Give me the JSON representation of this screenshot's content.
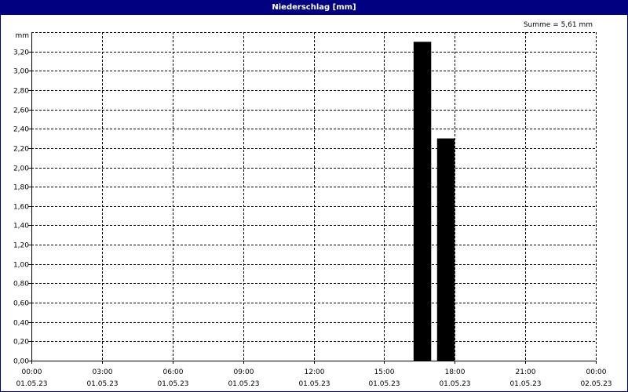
{
  "window": {
    "title": "Niederschlag [mm]"
  },
  "summary": {
    "text": "Summe = 5,61 mm"
  },
  "chart_data": {
    "type": "bar",
    "title": "Niederschlag [mm]",
    "ylabel": "mm",
    "xlabel": "",
    "ylim": [
      0,
      3.4
    ],
    "xlim": [
      "01.05.23 00:00",
      "02.05.23 00:00"
    ],
    "grid": true,
    "y_ticks": [
      {
        "value": 0.0,
        "label": "0,00"
      },
      {
        "value": 0.2,
        "label": "0,20"
      },
      {
        "value": 0.4,
        "label": "0,40"
      },
      {
        "value": 0.6,
        "label": "0,60"
      },
      {
        "value": 0.8,
        "label": "0,80"
      },
      {
        "value": 1.0,
        "label": "1,00"
      },
      {
        "value": 1.2,
        "label": "1,20"
      },
      {
        "value": 1.4,
        "label": "1,40"
      },
      {
        "value": 1.6,
        "label": "1,60"
      },
      {
        "value": 1.8,
        "label": "1,80"
      },
      {
        "value": 2.0,
        "label": "2,00"
      },
      {
        "value": 2.2,
        "label": "2,20"
      },
      {
        "value": 2.4,
        "label": "2,40"
      },
      {
        "value": 2.6,
        "label": "2,60"
      },
      {
        "value": 2.8,
        "label": "2,80"
      },
      {
        "value": 3.0,
        "label": "3,00"
      },
      {
        "value": 3.2,
        "label": "3,20"
      }
    ],
    "x_ticks": [
      {
        "time": "01.05.23 00:00",
        "label_time": "00:00",
        "label_date": "01.05.23"
      },
      {
        "time": "01.05.23 03:00",
        "label_time": "03:00",
        "label_date": "01.05.23"
      },
      {
        "time": "01.05.23 06:00",
        "label_time": "06:00",
        "label_date": "01.05.23"
      },
      {
        "time": "01.05.23 09:00",
        "label_time": "09:00",
        "label_date": "01.05.23"
      },
      {
        "time": "01.05.23 12:00",
        "label_time": "12:00",
        "label_date": "01.05.23"
      },
      {
        "time": "01.05.23 15:00",
        "label_time": "15:00",
        "label_date": "01.05.23"
      },
      {
        "time": "01.05.23 18:00",
        "label_time": "18:00",
        "label_date": "01.05.23"
      },
      {
        "time": "01.05.23 21:00",
        "label_time": "21:00",
        "label_date": "01.05.23"
      },
      {
        "time": "02.05.23 00:00",
        "label_time": "00:00",
        "label_date": "02.05.23"
      }
    ],
    "series": [
      {
        "color": "#000000",
        "points": [
          {
            "start": "01.05.23 16:15",
            "end": "01.05.23 17:00",
            "value": 3.3
          },
          {
            "start": "01.05.23 17:15",
            "end": "01.05.23 18:00",
            "value": 2.3
          }
        ]
      }
    ]
  }
}
